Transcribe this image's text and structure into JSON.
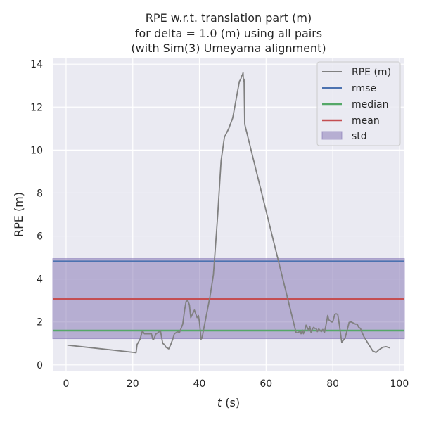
{
  "chart_data": {
    "type": "line",
    "title_lines": [
      "RPE w.r.t. translation part (m)",
      "for delta = 1.0 (m) using all pairs",
      "(with Sim(3) Umeyama alignment)"
    ],
    "xlabel_italic": "t",
    "xlabel_rest": " (s)",
    "ylabel": "RPE (m)",
    "xlim": [
      -4,
      101.5
    ],
    "ylim": [
      -0.3,
      14.3
    ],
    "xticks": [
      0,
      20,
      40,
      60,
      80,
      100
    ],
    "yticks": [
      0,
      2,
      4,
      6,
      8,
      10,
      12,
      14
    ],
    "grid": true,
    "legend_position": "upper right",
    "legend": [
      "RPE (m)",
      "rmse",
      "median",
      "mean",
      "std"
    ],
    "series": [
      {
        "name": "RPE (m)",
        "color": "#808080",
        "x": [
          0.5,
          20.5,
          21.0,
          21.3,
          22.2,
          22.9,
          23.5,
          25.6,
          26.0,
          26.3,
          27.0,
          27.6,
          28.3,
          29.0,
          29.5,
          30.0,
          30.8,
          31.4,
          32.0,
          32.5,
          33.5,
          34.0,
          35.0,
          35.6,
          36.0,
          36.5,
          37.0,
          37.4,
          38.5,
          39.3,
          39.7,
          40.0,
          40.5,
          40.8,
          41.2,
          42.2,
          43.2,
          44.2,
          45.5,
          46.5,
          47.5,
          48.8,
          50.0,
          52.0,
          52.4,
          52.7,
          52.9,
          53.1,
          53.2,
          53.4,
          53.6,
          69.0,
          69.6,
          70.2,
          70.5,
          70.9,
          71.2,
          71.6,
          72.0,
          72.5,
          72.8,
          73.1,
          73.5,
          74.0,
          74.3,
          74.6,
          75.0,
          75.4,
          75.8,
          76.2,
          76.6,
          77.0,
          77.5,
          78.0,
          78.5,
          78.8,
          79.2,
          79.6,
          80.0,
          80.6,
          81.0,
          81.5,
          82.0,
          82.3,
          82.7,
          83.2,
          83.7,
          84.3,
          84.9,
          85.5,
          86.2,
          86.8,
          87.3,
          87.8,
          88.3,
          88.8,
          89.4,
          90.0,
          91.0,
          92.0,
          93.0,
          94.0,
          95.0,
          96.0,
          97.0
        ],
        "y": [
          0.92,
          0.58,
          0.57,
          0.95,
          1.2,
          1.58,
          1.45,
          1.45,
          1.2,
          1.2,
          1.45,
          1.5,
          1.6,
          1.0,
          0.95,
          0.82,
          0.75,
          0.95,
          1.2,
          1.45,
          1.55,
          1.5,
          1.9,
          2.6,
          2.95,
          3.0,
          2.8,
          2.2,
          2.55,
          2.2,
          2.3,
          2.0,
          1.2,
          1.25,
          1.6,
          2.4,
          3.2,
          4.2,
          7.0,
          9.5,
          10.6,
          11.0,
          11.5,
          13.2,
          13.3,
          13.45,
          13.5,
          13.6,
          13.2,
          13.3,
          11.2,
          1.5,
          1.5,
          1.58,
          1.45,
          1.62,
          1.45,
          1.6,
          1.85,
          1.7,
          1.6,
          1.8,
          1.5,
          1.7,
          1.75,
          1.7,
          1.7,
          1.55,
          1.68,
          1.6,
          1.55,
          1.65,
          1.5,
          1.88,
          2.3,
          2.1,
          2.05,
          2.0,
          2.0,
          2.35,
          2.38,
          2.35,
          1.85,
          1.5,
          1.05,
          1.15,
          1.25,
          1.6,
          1.98,
          2.0,
          1.95,
          1.9,
          1.9,
          1.75,
          1.7,
          1.5,
          1.3,
          1.15,
          0.9,
          0.65,
          0.58,
          0.72,
          0.82,
          0.85,
          0.8
        ]
      }
    ],
    "stats": {
      "rmse": 4.82,
      "median": 1.6,
      "mean": 3.08,
      "std_low": 1.22,
      "std_high": 4.95
    },
    "colors": {
      "rmse": "#4c72b0",
      "median": "#55a868",
      "mean": "#c44e52",
      "std": "#8172b2",
      "background": "#eaeaf2",
      "grid": "#ffffff"
    }
  }
}
